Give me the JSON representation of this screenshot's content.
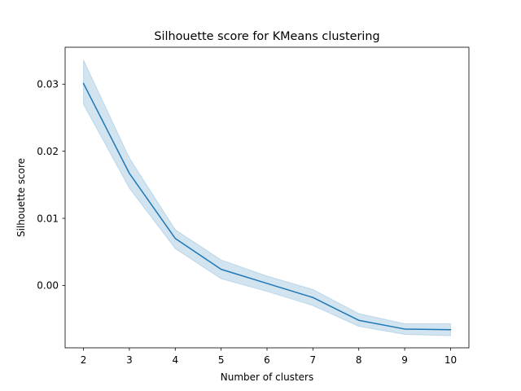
{
  "chart_data": {
    "type": "line",
    "title": "Silhouette score for KMeans clustering",
    "xlabel": "Number of clusters",
    "ylabel": "Silhouette score",
    "x": [
      2,
      3,
      4,
      5,
      6,
      7,
      8,
      9,
      10
    ],
    "x_ticks": [
      "2",
      "3",
      "4",
      "5",
      "6",
      "7",
      "8",
      "9",
      "10"
    ],
    "y_ticks": [
      "0.00",
      "0.01",
      "0.02",
      "0.03"
    ],
    "xlim": [
      1.6,
      10.4
    ],
    "ylim": [
      -0.0093,
      0.0355
    ],
    "grid": false,
    "series": [
      {
        "values": [
          0.0301,
          0.0167,
          0.007,
          0.0024,
          0.0003,
          -0.0018,
          -0.0052,
          -0.0065,
          -0.0066
        ],
        "ci_lower": [
          0.027,
          0.0145,
          0.0055,
          0.001,
          -0.0009,
          -0.003,
          -0.0061,
          -0.0073,
          -0.0075
        ],
        "ci_upper": [
          0.0336,
          0.019,
          0.0083,
          0.0038,
          0.0014,
          -0.0006,
          -0.0042,
          -0.0057,
          -0.0057
        ],
        "color": "#1f77b4",
        "band_color": "#1f77b4"
      }
    ]
  }
}
